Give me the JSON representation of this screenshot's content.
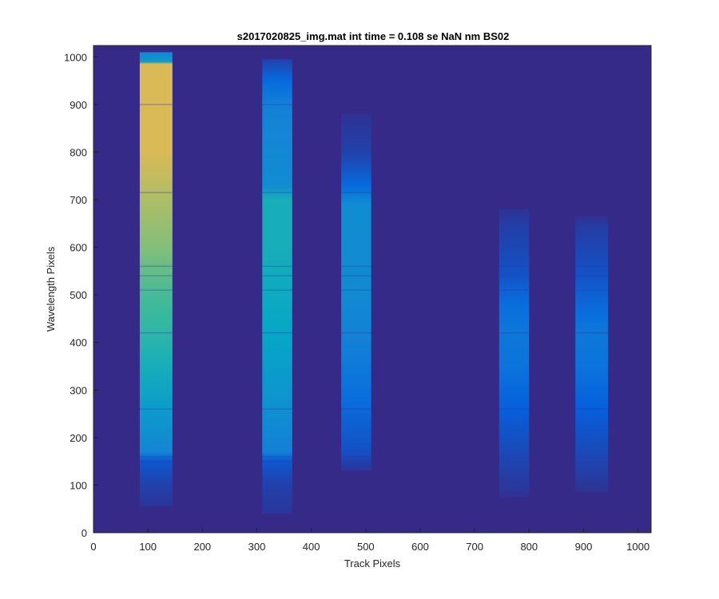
{
  "chart_data": {
    "type": "heatmap",
    "title": "s2017020825_img.mat int time = 0.108 se  NaN nm BS02",
    "xlabel": "Track Pixels",
    "ylabel": "Wavelength Pixels",
    "xlim": [
      0,
      1024
    ],
    "ylim": [
      0,
      1024
    ],
    "xticks": [
      0,
      100,
      200,
      300,
      400,
      500,
      600,
      700,
      800,
      900,
      1000
    ],
    "yticks": [
      0,
      100,
      200,
      300,
      400,
      500,
      600,
      700,
      800,
      900,
      1000
    ],
    "colormap": "parula",
    "background_color": "#352A87",
    "grid": false,
    "tracks": [
      {
        "x_range": [
          85,
          145
        ],
        "y_range": [
          55,
          1010
        ],
        "profile": [
          [
            55,
            0.03
          ],
          [
            100,
            0.06
          ],
          [
            150,
            0.12
          ],
          [
            170,
            0.3
          ],
          [
            260,
            0.4
          ],
          [
            350,
            0.5
          ],
          [
            430,
            0.58
          ],
          [
            500,
            0.62
          ],
          [
            600,
            0.7
          ],
          [
            700,
            0.76
          ],
          [
            800,
            0.82
          ],
          [
            900,
            0.82
          ],
          [
            985,
            0.82
          ],
          [
            990,
            0.4
          ],
          [
            1010,
            0.3
          ]
        ]
      },
      {
        "x_range": [
          310,
          365
        ],
        "y_range": [
          40,
          995
        ],
        "profile": [
          [
            40,
            0.03
          ],
          [
            100,
            0.06
          ],
          [
            150,
            0.12
          ],
          [
            170,
            0.28
          ],
          [
            300,
            0.38
          ],
          [
            420,
            0.45
          ],
          [
            600,
            0.5
          ],
          [
            700,
            0.5
          ],
          [
            730,
            0.33
          ],
          [
            850,
            0.3
          ],
          [
            900,
            0.28
          ],
          [
            950,
            0.18
          ],
          [
            995,
            0.06
          ]
        ]
      },
      {
        "x_range": [
          455,
          510
        ],
        "y_range": [
          130,
          880
        ],
        "profile": [
          [
            130,
            0.03
          ],
          [
            170,
            0.1
          ],
          [
            280,
            0.2
          ],
          [
            400,
            0.28
          ],
          [
            500,
            0.32
          ],
          [
            690,
            0.33
          ],
          [
            730,
            0.18
          ],
          [
            800,
            0.06
          ],
          [
            880,
            0.02
          ]
        ]
      },
      {
        "x_range": [
          745,
          800
        ],
        "y_range": [
          75,
          680
        ],
        "profile": [
          [
            75,
            0.02
          ],
          [
            150,
            0.07
          ],
          [
            260,
            0.14
          ],
          [
            350,
            0.22
          ],
          [
            420,
            0.24
          ],
          [
            480,
            0.2
          ],
          [
            550,
            0.1
          ],
          [
            650,
            0.05
          ],
          [
            680,
            0.02
          ]
        ]
      },
      {
        "x_range": [
          885,
          945
        ],
        "y_range": [
          85,
          665
        ],
        "profile": [
          [
            85,
            0.02
          ],
          [
            150,
            0.07
          ],
          [
            260,
            0.14
          ],
          [
            350,
            0.22
          ],
          [
            420,
            0.24
          ],
          [
            460,
            0.2
          ],
          [
            550,
            0.1
          ],
          [
            640,
            0.05
          ],
          [
            665,
            0.02
          ]
        ]
      }
    ]
  }
}
